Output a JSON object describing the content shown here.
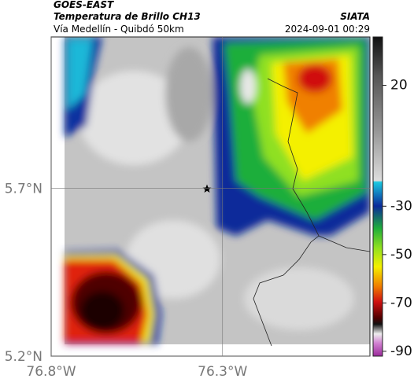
{
  "header": {
    "source": "GOES-EAST",
    "product": "Temperatura de Brillo CH13",
    "route": "Vía Medellín - Quibdó 50km",
    "org": "SIATA",
    "timestamp": "2024-09-01 00:29"
  },
  "map": {
    "xlim": [
      -76.8,
      -75.87
    ],
    "ylim": [
      5.2,
      6.15
    ],
    "xticks": [
      {
        "value": -76.8,
        "label": "76.8°W"
      },
      {
        "value": -76.3,
        "label": "76.3°W"
      }
    ],
    "yticks": [
      {
        "value": 5.2,
        "label": "5.2°N"
      },
      {
        "value": 5.7,
        "label": "5.7°N"
      }
    ]
  },
  "colorbar": {
    "clim": [
      -92,
      40
    ],
    "ticks": [
      20,
      -30,
      -50,
      -70,
      -90
    ]
  }
}
